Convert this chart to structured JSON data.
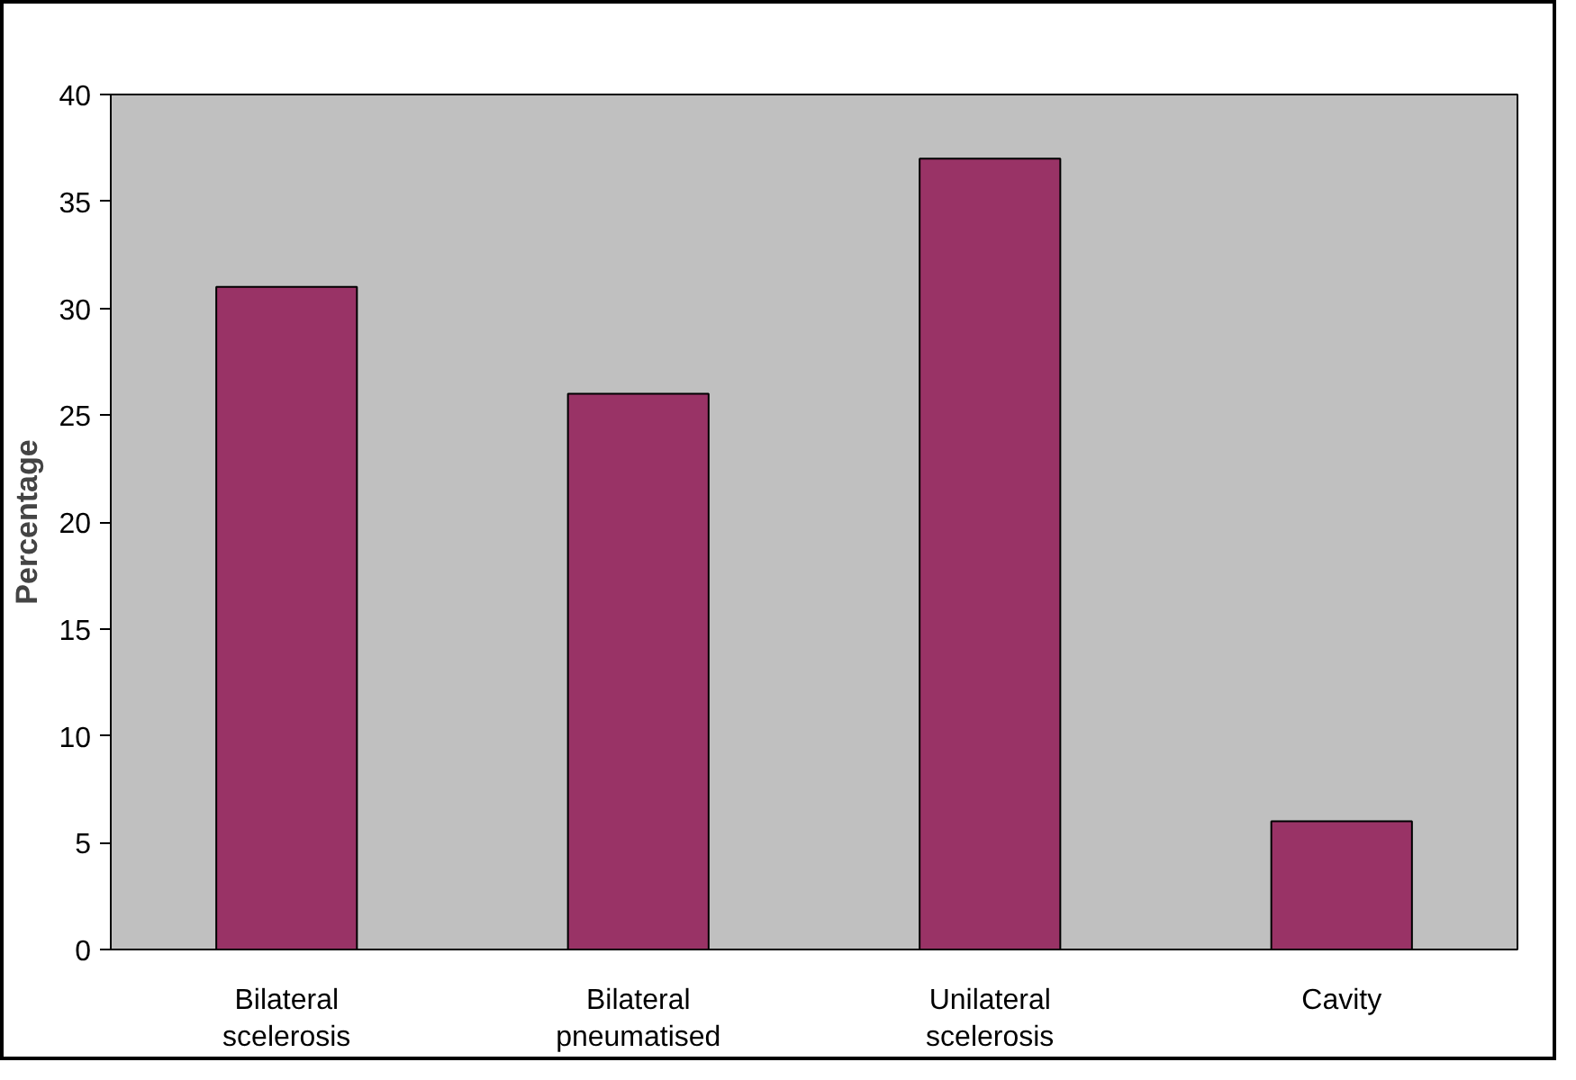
{
  "chart_data": {
    "type": "bar",
    "ylabel": "Percentage",
    "categories": [
      "Bilateral scelerosis",
      "Bilateral pneumatised",
      "Unilateral scelerosis",
      "Cavity"
    ],
    "values": [
      31,
      26,
      37,
      6
    ],
    "color": "#993366",
    "ylim": [
      0,
      40
    ],
    "yticks": [
      0,
      5,
      10,
      15,
      20,
      25,
      30,
      35,
      40
    ],
    "grid": false
  }
}
